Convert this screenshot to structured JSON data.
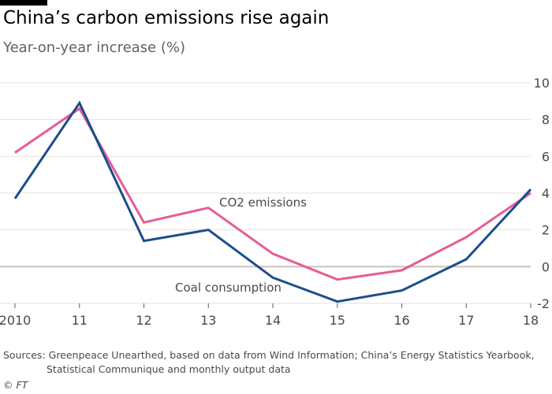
{
  "chart_data": {
    "type": "line",
    "title": "China’s carbon emissions rise again",
    "subtitle": "Year-on-year increase (%)",
    "categories": [
      "2010",
      "11",
      "12",
      "13",
      "14",
      "15",
      "16",
      "17",
      "18"
    ],
    "series": [
      {
        "name": "CO2 emissions",
        "color": "#e55d97",
        "values": [
          6.2,
          8.6,
          2.4,
          3.2,
          0.7,
          -0.7,
          -0.2,
          1.6,
          4.0
        ]
      },
      {
        "name": "Coal consumption",
        "color": "#1b4e8e",
        "values": [
          3.7,
          8.9,
          1.4,
          2.0,
          -0.6,
          -1.9,
          -1.3,
          0.4,
          4.2
        ]
      }
    ],
    "ylim": [
      -2,
      10
    ],
    "yticks": [
      "-2",
      "0",
      "2",
      "4",
      "6",
      "8",
      "10"
    ],
    "yaxis_side": "right",
    "grid": true,
    "zero_line_color": "#ccc1b7",
    "grid_color": "#e7e1da"
  },
  "source": {
    "line1": "Sources: Greenpeace Unearthed, based on data from Wind Information; China’s Energy Statistics Yearbook,",
    "line2": "Statistical Communique and monthly output data"
  },
  "credit": "© FT"
}
